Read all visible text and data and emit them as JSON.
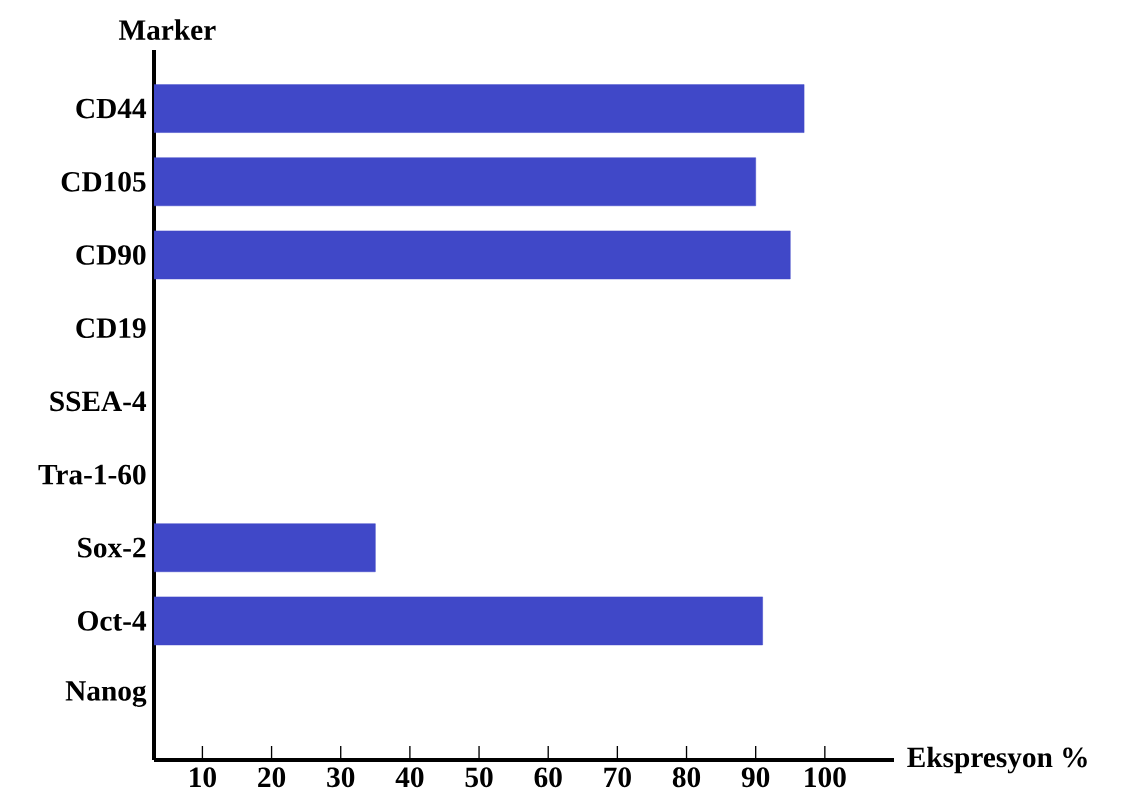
{
  "chart_data": {
    "type": "bar",
    "orientation": "horizontal",
    "xlabel": "Ekspresyon %",
    "ylabel": "Marker",
    "categories": [
      "CD44",
      "CD105",
      "CD90",
      "CD19",
      "SSEA-4",
      "Tra-1-60",
      "Sox-2",
      "Oct-4",
      "Nanog"
    ],
    "values": [
      97,
      90,
      95,
      null,
      null,
      null,
      35,
      91,
      null
    ],
    "color": "#4048c8",
    "xlim": [
      3,
      110
    ],
    "xticks": [
      10,
      20,
      30,
      40,
      50,
      60,
      70,
      80,
      90,
      100
    ]
  }
}
